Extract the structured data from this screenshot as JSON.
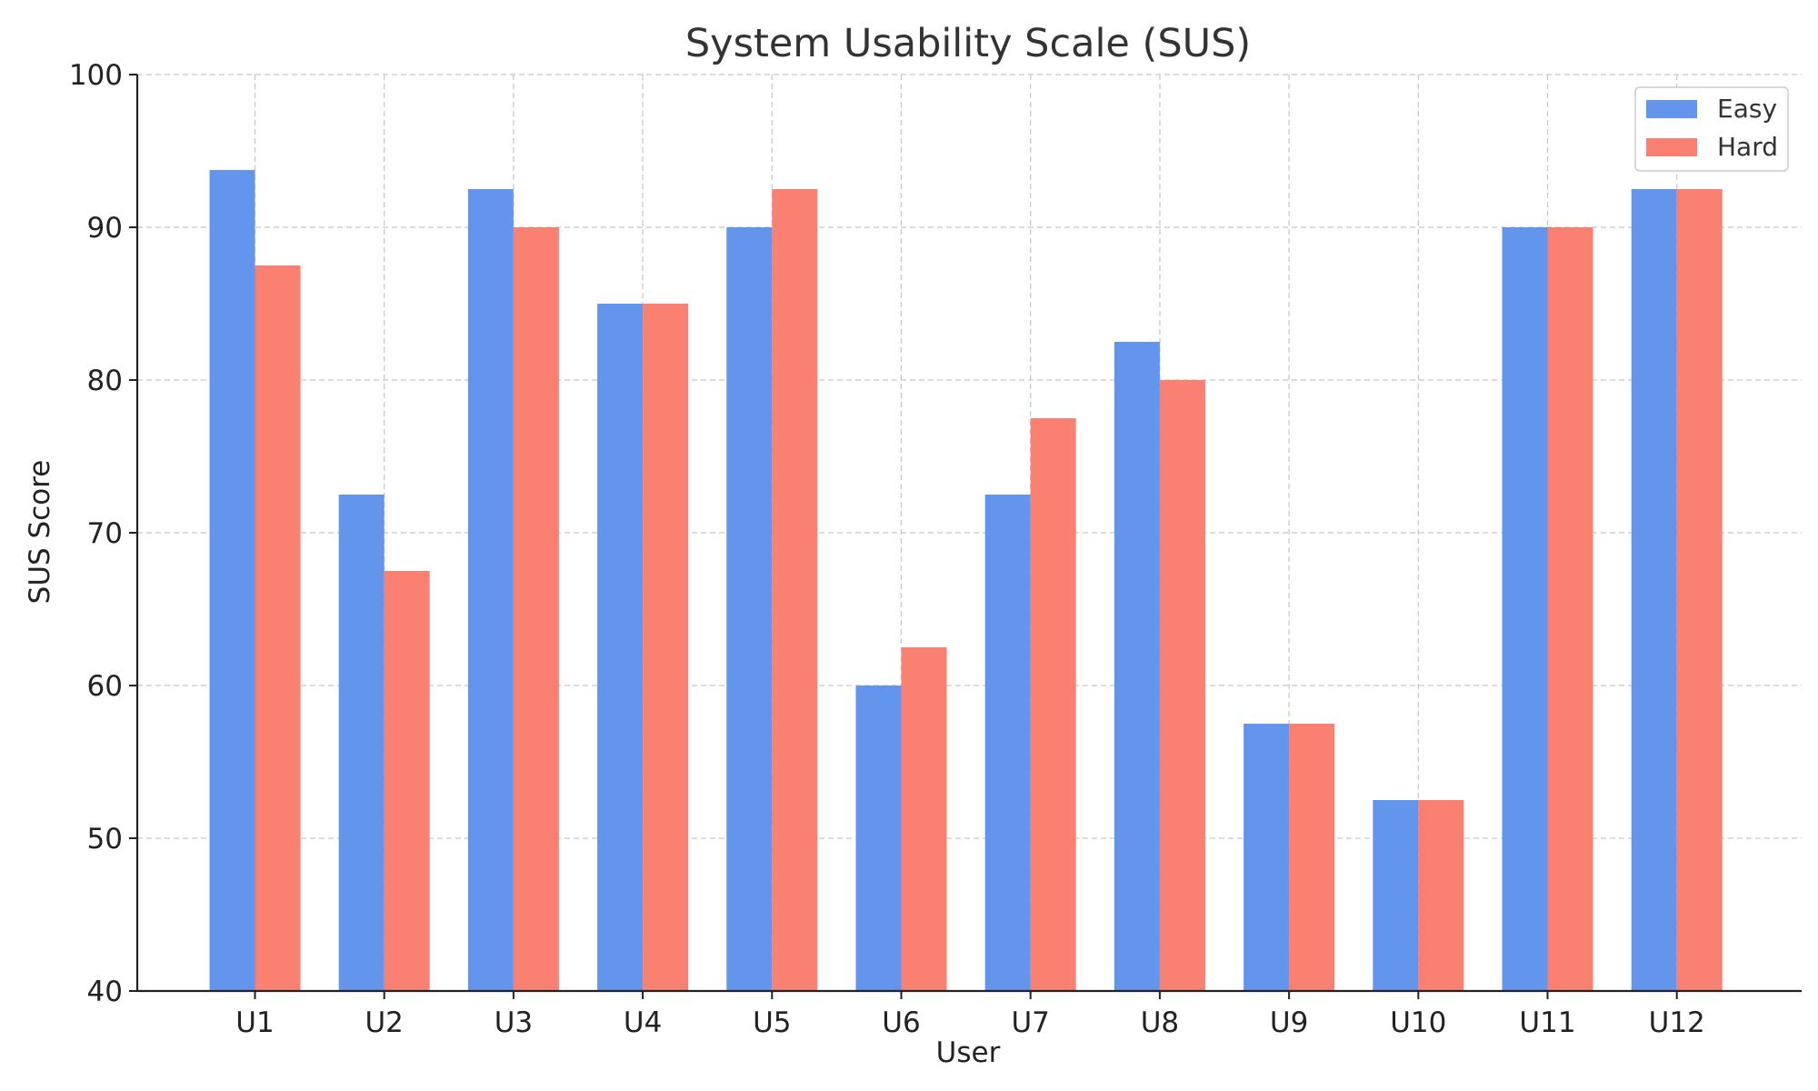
{
  "chart_data": {
    "type": "bar",
    "title": "System Usability Scale (SUS)",
    "xlabel": "User",
    "ylabel": "SUS Score",
    "categories": [
      "U1",
      "U2",
      "U3",
      "U4",
      "U5",
      "U6",
      "U7",
      "U8",
      "U9",
      "U10",
      "U11",
      "U12"
    ],
    "series": [
      {
        "name": "Easy",
        "color": "#6495ED",
        "values": [
          93.75,
          72.5,
          92.5,
          85,
          90,
          60,
          72.5,
          82.5,
          57.5,
          52.5,
          90,
          92.5
        ]
      },
      {
        "name": "Hard",
        "color": "#FA8072",
        "values": [
          87.5,
          67.5,
          90,
          85,
          92.5,
          62.5,
          77.5,
          80,
          57.5,
          52.5,
          90,
          92.5
        ]
      }
    ],
    "ylim": [
      40,
      100
    ],
    "yticks": [
      40,
      50,
      60,
      70,
      80,
      90,
      100
    ],
    "grid": true,
    "legend_position": "top-right"
  }
}
